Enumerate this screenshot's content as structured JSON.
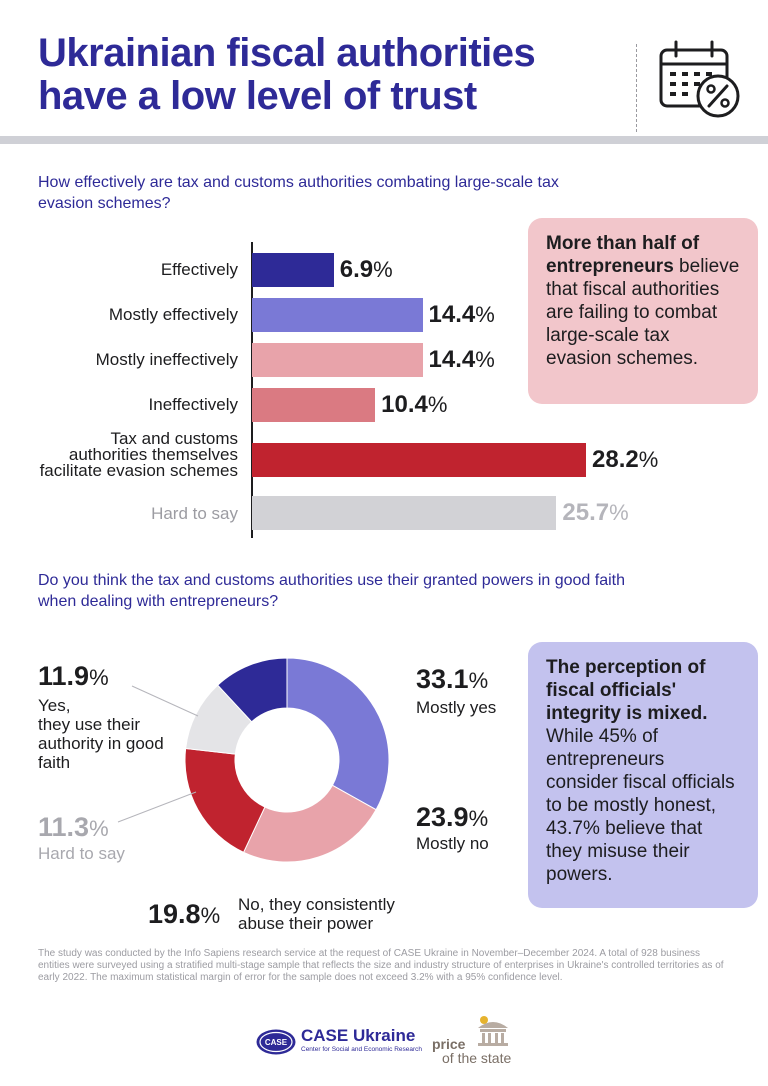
{
  "header": {
    "title": "Ukrainian fiscal authorities have a low level of trust",
    "icon": "calendar-percent-icon"
  },
  "colors": {
    "navy": "#2e2a97",
    "periwinkle": "#7a79d6",
    "light_pink": "#e8a3aa",
    "pink": "#da7a82",
    "crimson": "#c0232f",
    "grey": "#d2d2d6",
    "note_pink": "#f2c6cb",
    "note_lavender": "#c3c2ee"
  },
  "chart_data": [
    {
      "type": "bar",
      "orientation": "horizontal",
      "title": "How effectively are tax and customs authorities combating large-scale tax evasion schemes?",
      "categories": [
        "Effectively",
        "Mostly effectively",
        "Mostly ineffectively",
        "Ineffectively",
        "Tax and customs authorities themselves facilitate evasion schemes",
        "Hard to say"
      ],
      "values": [
        6.9,
        14.4,
        14.4,
        10.4,
        28.2,
        25.7
      ],
      "value_labels": [
        "6.9",
        "14.4",
        "14.4",
        "10.4",
        "28.2",
        "25.7"
      ],
      "unit": "%",
      "xlim": [
        0,
        30
      ]
    },
    {
      "type": "pie",
      "style": "donut",
      "title": "Do you think the tax and customs authorities use their granted powers in good faith when dealing with entrepreneurs?",
      "categories": [
        "Yes, they use their authority in good faith",
        "Mostly yes",
        "Mostly no",
        "No, they consistently abuse their power",
        "Hard to say"
      ],
      "values": [
        11.9,
        33.1,
        23.9,
        19.8,
        11.3
      ],
      "value_labels": [
        "11.9",
        "33.1",
        "23.9",
        "19.8",
        "11.3"
      ],
      "unit": "%"
    }
  ],
  "bar_labels": {
    "effectively": "Effectively",
    "mostly_effectively": "Mostly effectively",
    "mostly_ineffectively": "Mostly ineffectively",
    "ineffectively": "Ineffectively",
    "facilitate_line1": "Tax and customs",
    "facilitate_line2": "authorities themselves",
    "facilitate_line3": "facilitate evasion schemes",
    "hard_to_say": "Hard to say",
    "percent_sign": "%"
  },
  "note1": {
    "bold": "More than half of entrepreneurs",
    "text": " believe that fiscal authorities are failing to combat large-scale tax evasion schemes."
  },
  "donut_labels": {
    "yes_l1": "Yes,",
    "yes_l2": "they use their",
    "yes_l3": "authority in good",
    "yes_l4": "faith",
    "mostly_yes": "Mostly yes",
    "mostly_no": "Mostly no",
    "no_l1": "No, they consistently",
    "no_l2": "abuse their power",
    "hard": "Hard to say"
  },
  "note2": {
    "bold": "The perception of fiscal officials' integrity is mixed.",
    "text": " While 45% of entrepreneurs consider fiscal officials to be mostly honest, 43.7% believe that they misuse their powers."
  },
  "footnote": "The study was conducted by the Info Sapiens research service at the request of CASE Ukraine in November–December 2024. A total of 928 business entities were surveyed using a stratified multi-stage sample that reflects the size and industry structure of enterprises in Ukraine's controlled territories as of early 2022. The maximum statistical margin of error for the sample does not exceed 3.2% with a 95% confidence level.",
  "logos": {
    "case_badge": "CASE",
    "case_title": "CASE Ukraine",
    "case_sub": "Center for Social and Economic Research",
    "pots_line1": "price",
    "pots_line2": "of the state"
  }
}
